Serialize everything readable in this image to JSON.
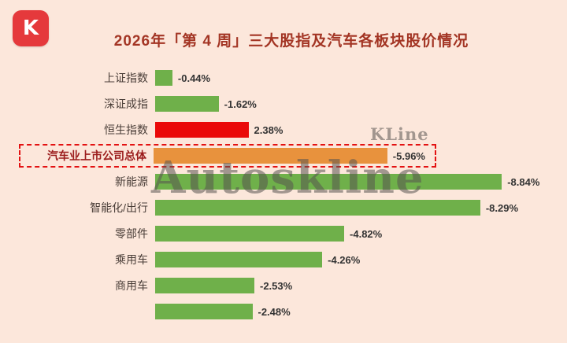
{
  "logo": {
    "letter": "K"
  },
  "header": {
    "title": "2026年「第 4 周」三大股指及汽车各板块股价情况"
  },
  "watermark": {
    "main": "Autoskline",
    "small": "KLine"
  },
  "chart_data": {
    "type": "bar",
    "orientation": "horizontal",
    "title": "2026年「第 4 周」三大股指及汽车各板块股价情况",
    "categories": [
      "上证指数",
      "深证成指",
      "恒生指数",
      "汽车业上市公司总体",
      "新能源",
      "智能化/出行",
      "零部件",
      "乘用车",
      "商用车",
      ""
    ],
    "values": [
      -0.44,
      -1.62,
      2.38,
      -5.96,
      -8.84,
      -8.29,
      -4.82,
      -4.26,
      -2.53,
      -2.48
    ],
    "value_labels": [
      "-0.44%",
      "-1.62%",
      "2.38%",
      "-5.96%",
      "-8.84%",
      "-8.29%",
      "-4.82%",
      "-4.26%",
      "-2.53%",
      "-2.48%"
    ],
    "bar_colors": [
      "#6fb04a",
      "#6fb04a",
      "#ea0a0a",
      "#e8923d",
      "#6fb04a",
      "#6fb04a",
      "#6fb04a",
      "#6fb04a",
      "#6fb04a",
      "#6fb04a"
    ],
    "highlight_index": 3,
    "xlim": [
      0,
      9
    ],
    "grid": false,
    "legend": "none",
    "colors": {
      "negative_green": "#6fb04a",
      "positive_red": "#ea0a0a",
      "highlight_orange": "#e8923d",
      "background": "#fce7db",
      "title_text": "#a33524",
      "highlight_border": "#e31212"
    }
  }
}
